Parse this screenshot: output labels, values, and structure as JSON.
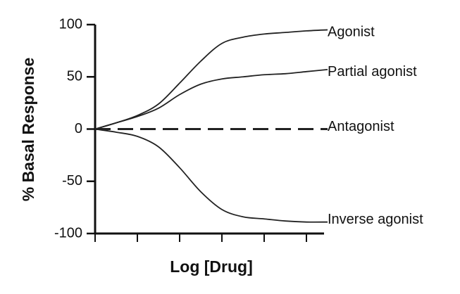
{
  "chart_data": {
    "type": "line",
    "y_label": "% Basal Response",
    "x_label": "Log [Drug]",
    "x": [
      0,
      0.5,
      1,
      1.5,
      2,
      2.5,
      3,
      3.5,
      4,
      4.5,
      5,
      5.5
    ],
    "xlim": [
      0,
      5.5
    ],
    "xticks": [
      0,
      1,
      2,
      3,
      4,
      5
    ],
    "ylim": [
      -100,
      100
    ],
    "yticks": [
      -100,
      -50,
      0,
      50,
      100
    ],
    "grid": false,
    "series": [
      {
        "name": "Agonist",
        "color": "#222222",
        "dashed": false,
        "values": [
          0,
          6,
          13,
          24,
          44,
          65,
          82,
          88,
          91,
          92.5,
          94,
          95
        ]
      },
      {
        "name": "Partial agonist",
        "color": "#222222",
        "dashed": false,
        "values": [
          0,
          6,
          12,
          20,
          33,
          43,
          48,
          50,
          52,
          53,
          55,
          57
        ]
      },
      {
        "name": "Antagonist",
        "color": "#222222",
        "dashed": true,
        "values": [
          0,
          0,
          0,
          0,
          0,
          0,
          0,
          0,
          0,
          0,
          0,
          0
        ]
      },
      {
        "name": "Inverse agonist",
        "color": "#222222",
        "dashed": false,
        "values": [
          0,
          -3,
          -7,
          -17,
          -37,
          -60,
          -77,
          -84,
          -86,
          -88,
          -89,
          -89
        ]
      }
    ]
  }
}
